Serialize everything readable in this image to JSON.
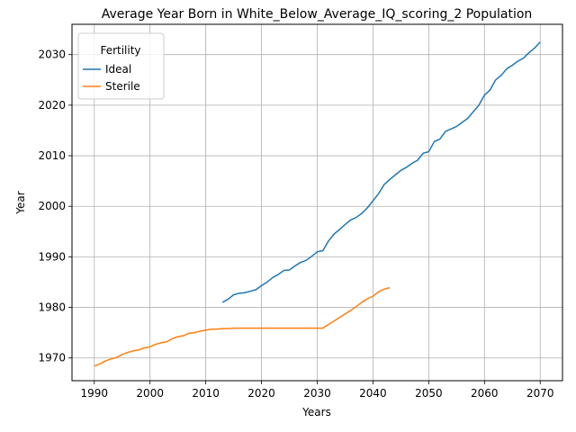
{
  "chart_data": {
    "type": "line",
    "title": "Average Year Born in White_Below_Average_IQ_scoring_2 Population",
    "xlabel": "Years",
    "ylabel": "Year",
    "xlim": [
      1986,
      2074
    ],
    "ylim": [
      1965.5,
      2036
    ],
    "xticks": [
      1990,
      2000,
      2010,
      2020,
      2030,
      2040,
      2050,
      2060,
      2070
    ],
    "yticks": [
      1970,
      1980,
      1990,
      2000,
      2010,
      2020,
      2030
    ],
    "grid": true,
    "legend": {
      "title": "Fertility",
      "placement": "top-left"
    },
    "series": [
      {
        "name": "Ideal",
        "color": "#1f77b4",
        "points": [
          [
            2013,
            1981.0
          ],
          [
            2014,
            1981.6
          ],
          [
            2015,
            1982.5
          ],
          [
            2016,
            1982.8
          ],
          [
            2017,
            1982.9
          ],
          [
            2018,
            1983.2
          ],
          [
            2019,
            1983.5
          ],
          [
            2020,
            1984.3
          ],
          [
            2021,
            1985.0
          ],
          [
            2022,
            1985.9
          ],
          [
            2023,
            1986.5
          ],
          [
            2024,
            1987.3
          ],
          [
            2025,
            1987.4
          ],
          [
            2026,
            1988.2
          ],
          [
            2027,
            1988.9
          ],
          [
            2028,
            1989.3
          ],
          [
            2029,
            1990.1
          ],
          [
            2030,
            1991.0
          ],
          [
            2031,
            1991.2
          ],
          [
            2032,
            1993.1
          ],
          [
            2033,
            1994.5
          ],
          [
            2034,
            1995.4
          ],
          [
            2035,
            1996.4
          ],
          [
            2036,
            1997.3
          ],
          [
            2037,
            1997.8
          ],
          [
            2038,
            1998.6
          ],
          [
            2039,
            1999.7
          ],
          [
            2040,
            2001.1
          ],
          [
            2041,
            2002.5
          ],
          [
            2042,
            2004.3
          ],
          [
            2043,
            2005.3
          ],
          [
            2044,
            2006.2
          ],
          [
            2045,
            2007.1
          ],
          [
            2046,
            2007.7
          ],
          [
            2047,
            2008.5
          ],
          [
            2048,
            2009.1
          ],
          [
            2049,
            2010.5
          ],
          [
            2050,
            2010.8
          ],
          [
            2051,
            2012.8
          ],
          [
            2052,
            2013.3
          ],
          [
            2053,
            2014.8
          ],
          [
            2054,
            2015.3
          ],
          [
            2055,
            2015.8
          ],
          [
            2056,
            2016.6
          ],
          [
            2057,
            2017.4
          ],
          [
            2058,
            2018.7
          ],
          [
            2059,
            2020.0
          ],
          [
            2060,
            2022.0
          ],
          [
            2061,
            2023.0
          ],
          [
            2062,
            2025.0
          ],
          [
            2063,
            2025.9
          ],
          [
            2064,
            2027.2
          ],
          [
            2065,
            2027.9
          ],
          [
            2066,
            2028.7
          ],
          [
            2067,
            2029.3
          ],
          [
            2068,
            2030.4
          ],
          [
            2069,
            2031.3
          ],
          [
            2070,
            2032.5
          ]
        ]
      },
      {
        "name": "Sterile",
        "color": "#ff7f0e",
        "points": [
          [
            1990,
            1968.4
          ],
          [
            1991,
            1968.8
          ],
          [
            1992,
            1969.4
          ],
          [
            1993,
            1969.8
          ],
          [
            1994,
            1970.1
          ],
          [
            1995,
            1970.7
          ],
          [
            1996,
            1971.1
          ],
          [
            1997,
            1971.4
          ],
          [
            1998,
            1971.6
          ],
          [
            1999,
            1972.0
          ],
          [
            2000,
            1972.2
          ],
          [
            2001,
            1972.7
          ],
          [
            2002,
            1973.0
          ],
          [
            2003,
            1973.2
          ],
          [
            2004,
            1973.8
          ],
          [
            2005,
            1974.2
          ],
          [
            2006,
            1974.4
          ],
          [
            2007,
            1974.9
          ],
          [
            2008,
            1975.0
          ],
          [
            2009,
            1975.3
          ],
          [
            2010,
            1975.5
          ],
          [
            2011,
            1975.7
          ],
          [
            2012,
            1975.7
          ],
          [
            2013,
            1975.8
          ],
          [
            2014,
            1975.8
          ],
          [
            2015,
            1975.9
          ],
          [
            2016,
            1975.9
          ],
          [
            2017,
            1975.9
          ],
          [
            2018,
            1975.9
          ],
          [
            2019,
            1975.9
          ],
          [
            2020,
            1975.9
          ],
          [
            2021,
            1975.9
          ],
          [
            2022,
            1975.9
          ],
          [
            2023,
            1975.9
          ],
          [
            2024,
            1975.9
          ],
          [
            2025,
            1975.9
          ],
          [
            2026,
            1975.9
          ],
          [
            2027,
            1975.9
          ],
          [
            2028,
            1975.9
          ],
          [
            2029,
            1975.9
          ],
          [
            2030,
            1975.9
          ],
          [
            2031,
            1975.9
          ],
          [
            2032,
            1976.6
          ],
          [
            2033,
            1977.3
          ],
          [
            2034,
            1978.0
          ],
          [
            2035,
            1978.7
          ],
          [
            2036,
            1979.4
          ],
          [
            2037,
            1980.2
          ],
          [
            2038,
            1981.0
          ],
          [
            2039,
            1981.7
          ],
          [
            2040,
            1982.2
          ],
          [
            2041,
            1983.1
          ],
          [
            2042,
            1983.6
          ],
          [
            2043,
            1983.9
          ]
        ]
      }
    ]
  }
}
